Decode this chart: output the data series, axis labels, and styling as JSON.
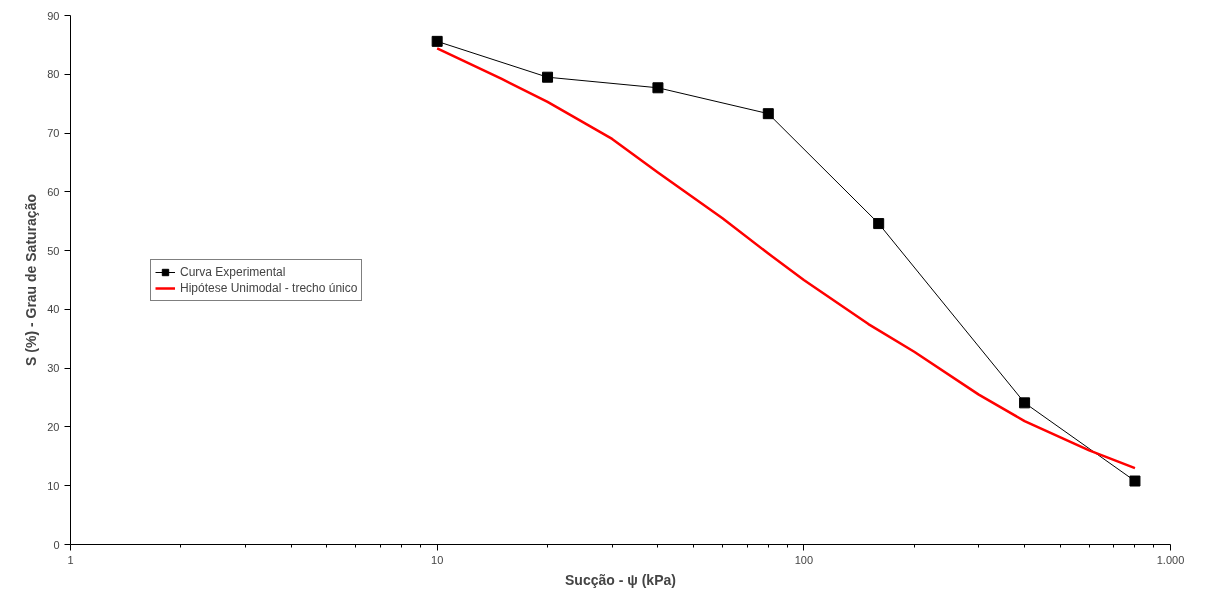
{
  "chart_data": {
    "type": "line",
    "xlabel": "Sucção - ψ (kPa)",
    "ylabel": "S (%) - Grau de Saturação",
    "log": "x",
    "grid": false,
    "legend": "left",
    "xlim": [
      1,
      1000
    ],
    "xticks": [
      1,
      10,
      100,
      {
        "value": 1000,
        "label": "1.000"
      }
    ],
    "ylim": [
      0,
      90
    ],
    "yticks": [
      0,
      10,
      20,
      30,
      40,
      50,
      60,
      70,
      80,
      90
    ],
    "series": [
      {
        "name": "Curva Experimental",
        "color": "#000000",
        "marker": "square",
        "x": [
          10,
          20,
          40,
          80,
          160,
          400,
          800
        ],
        "values": [
          85.6,
          79.5,
          77.7,
          73.3,
          54.6,
          24.1,
          10.8
        ]
      },
      {
        "name": "Hipótese Unimodal - trecho único",
        "color": "#ff0000",
        "marker": "none",
        "x": [
          10,
          15,
          20,
          30,
          40,
          60,
          80,
          100,
          150,
          200,
          300,
          400,
          600,
          800
        ],
        "values": [
          84.4,
          79.2,
          75.3,
          69,
          63.3,
          55.5,
          49.5,
          45,
          37.5,
          32.8,
          25.5,
          21,
          16,
          13
        ]
      }
    ]
  }
}
